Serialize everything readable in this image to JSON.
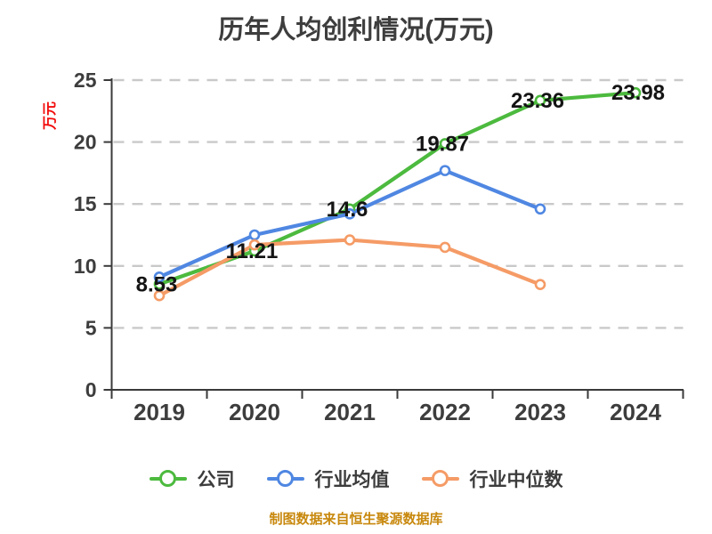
{
  "title": "历年人均创利情况(万元)",
  "y_axis_unit_label": "万元",
  "footer_note": "制图数据来自恒生聚源数据库",
  "colors": {
    "company": "#4cba3e",
    "industry_mean": "#4f87e2",
    "industry_median": "#f59b66",
    "title_text": "#3d3d3d",
    "axis_text": "#3d3d3d",
    "axis_line": "#3a3a3a",
    "gridline": "#c9c9c9",
    "data_label": "#141414",
    "unit_label": "#f20c0c",
    "footer": "#c8880d",
    "background": "#ffffff"
  },
  "legend": {
    "items": [
      {
        "id": "company",
        "label": "公司"
      },
      {
        "id": "industry-mean",
        "label": "行业均值"
      },
      {
        "id": "industry-median",
        "label": "行业中位数"
      }
    ]
  },
  "chart_data": {
    "type": "line",
    "title": "历年人均创利情况(万元)",
    "categories": [
      "2019",
      "2020",
      "2021",
      "2022",
      "2023",
      "2024"
    ],
    "series": [
      {
        "id": "company",
        "name": "公司",
        "color": "#4cba3e",
        "values": [
          8.53,
          11.21,
          14.6,
          19.87,
          23.36,
          23.98
        ],
        "data_labels": [
          "8.53",
          "11.21",
          "14.6",
          "19.87",
          "23.36",
          "23.98"
        ]
      },
      {
        "id": "industry-mean",
        "name": "行业均值",
        "color": "#4f87e2",
        "values": [
          9.1,
          12.5,
          14.2,
          17.7,
          14.6,
          null
        ],
        "data_labels": null
      },
      {
        "id": "industry-median",
        "name": "行业中位数",
        "color": "#f59b66",
        "values": [
          7.6,
          11.7,
          12.1,
          11.5,
          8.5,
          null
        ],
        "data_labels": null
      }
    ],
    "xlabel": "",
    "ylabel": "万元",
    "ylim": [
      0,
      25
    ],
    "yticks": [
      0,
      5,
      10,
      15,
      20,
      25
    ],
    "grid": "horizontal-dashed",
    "legend_position": "bottom",
    "marker": "hollow-circle"
  }
}
